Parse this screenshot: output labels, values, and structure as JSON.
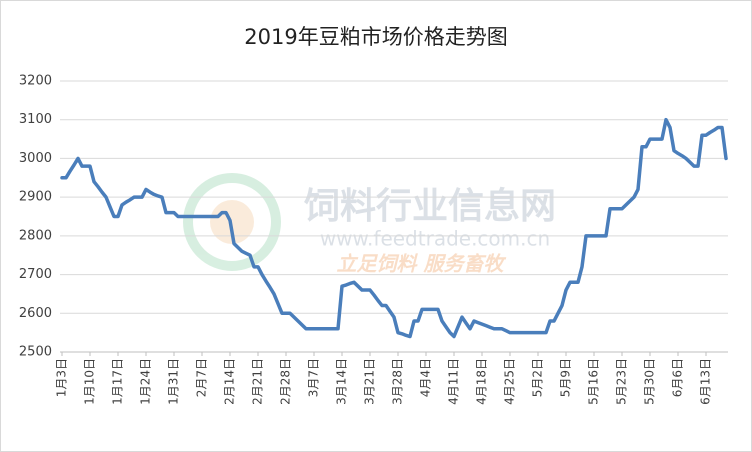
{
  "watermark": {
    "title": "饲料行业信息网",
    "url": "www.feedtrade.com.cn",
    "slogan": "立足饲料   服务畜牧"
  },
  "chart_data": {
    "type": "line",
    "title": "2019年豆粕市场价格走势图",
    "categories": [
      "1月3日",
      null,
      null,
      null,
      null,
      null,
      null,
      "1月10日",
      null,
      null,
      null,
      null,
      null,
      null,
      "1月17日",
      null,
      null,
      null,
      null,
      null,
      null,
      "1月24日",
      null,
      null,
      null,
      null,
      null,
      null,
      "1月31日",
      null,
      null,
      null,
      null,
      null,
      null,
      "2月7日",
      null,
      null,
      null,
      null,
      null,
      null,
      "2月14日",
      null,
      null,
      null,
      null,
      null,
      null,
      "2月21日",
      null,
      null,
      null,
      null,
      null,
      null,
      "2月28日",
      null,
      null,
      null,
      null,
      null,
      null,
      "3月7日",
      null,
      null,
      null,
      null,
      null,
      null,
      "3月14日",
      null,
      null,
      null,
      null,
      null,
      null,
      "3月21日",
      null,
      null,
      null,
      null,
      null,
      null,
      "3月28日",
      null,
      null,
      null,
      null,
      null,
      null,
      "4月4日",
      null,
      null,
      null,
      null,
      null,
      null,
      "4月11日",
      null,
      null,
      null,
      null,
      null,
      null,
      "4月18日",
      null,
      null,
      null,
      null,
      null,
      null,
      "4月25日",
      null,
      null,
      null,
      null,
      null,
      null,
      "5月2日",
      null,
      null,
      null,
      null,
      null,
      null,
      "5月9日",
      null,
      null,
      null,
      null,
      null,
      null,
      "5月16日",
      null,
      null,
      null,
      null,
      null,
      null,
      "5月23日",
      null,
      null,
      null,
      null,
      null,
      null,
      "5月30日",
      null,
      null,
      null,
      null,
      null,
      null,
      "6月6日",
      null,
      null,
      null,
      null,
      null,
      null,
      "6月13日",
      null,
      null,
      null,
      null,
      null
    ],
    "values": [
      2950,
      2950,
      2967,
      2983,
      3000,
      2980,
      2980,
      2980,
      2940,
      2927,
      2913,
      2900,
      2875,
      2850,
      2850,
      2880,
      2887,
      2893,
      2900,
      2900,
      2900,
      2920,
      2913,
      2907,
      2903,
      2900,
      2860,
      2860,
      2860,
      2850,
      2850,
      2850,
      2850,
      2850,
      2850,
      2850,
      2850,
      2850,
      2850,
      2850,
      2860,
      2860,
      2840,
      2780,
      2770,
      2760,
      2755,
      2750,
      2720,
      2720,
      2700,
      2683,
      2667,
      2650,
      2625,
      2600,
      2600,
      2600,
      2590,
      2580,
      2570,
      2560,
      2560,
      2560,
      2560,
      2560,
      2560,
      2560,
      2560,
      2560,
      2670,
      2673,
      2677,
      2680,
      2670,
      2660,
      2660,
      2660,
      2647,
      2633,
      2620,
      2620,
      2605,
      2590,
      2550,
      2547,
      2543,
      2540,
      2580,
      2580,
      2610,
      2610,
      2610,
      2610,
      2610,
      2580,
      2565,
      2550,
      2540,
      2565,
      2590,
      2575,
      2560,
      2580,
      2576,
      2572,
      2568,
      2564,
      2560,
      2560,
      2560,
      2555,
      2550,
      2550,
      2550,
      2550,
      2550,
      2550,
      2550,
      2550,
      2550,
      2550,
      2580,
      2580,
      2600,
      2620,
      2660,
      2680,
      2680,
      2680,
      2720,
      2800,
      2800,
      2800,
      2800,
      2800,
      2800,
      2870,
      2870,
      2870,
      2870,
      2880,
      2890,
      2900,
      2920,
      3030,
      3030,
      3050,
      3050,
      3050,
      3050,
      3100,
      3080,
      3020,
      3013,
      3007,
      3000,
      2990,
      2980,
      2980,
      3060,
      3060,
      3067,
      3073,
      3080,
      3080,
      3000
    ],
    "color": "#4a7ebb",
    "ylim": [
      2500,
      3200
    ],
    "yticks": [
      2500,
      2600,
      2700,
      2800,
      2900,
      3000,
      3100,
      3200
    ],
    "grid": true
  }
}
